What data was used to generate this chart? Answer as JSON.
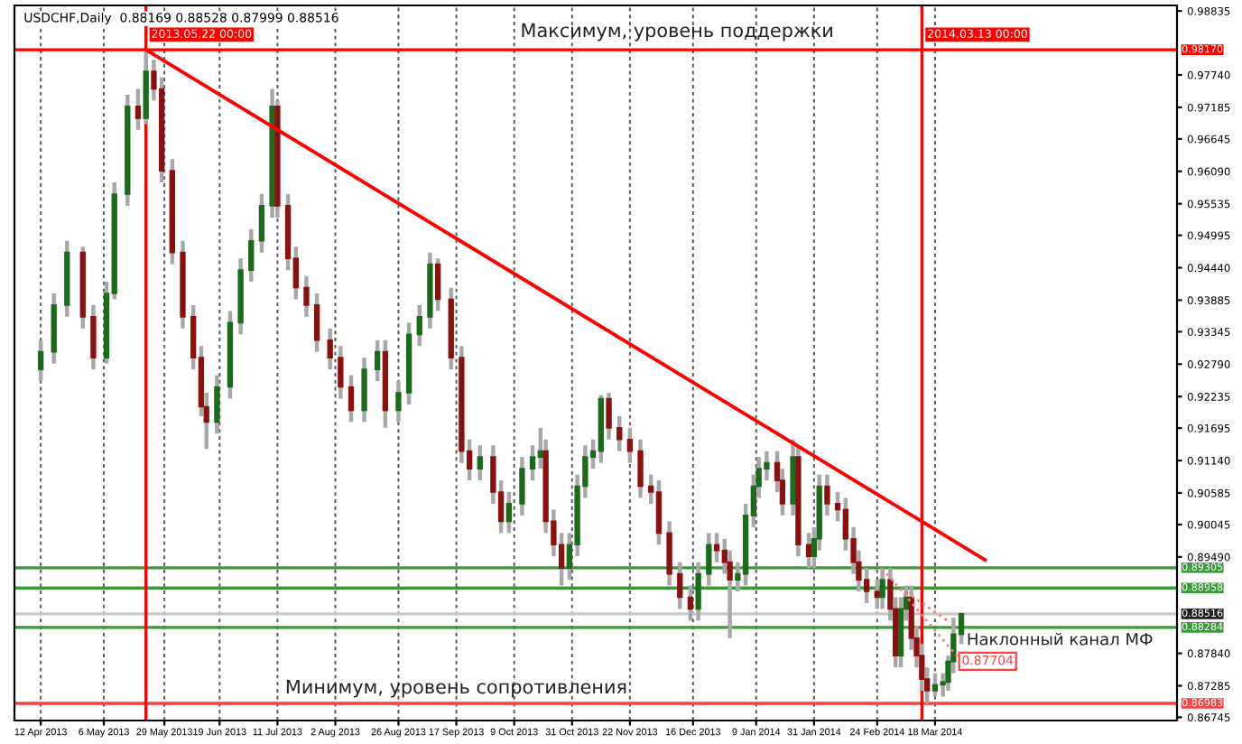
{
  "chart_data": {
    "type": "candlestick",
    "title": "USDCHF,Daily  0.88169 0.88528 0.87999 0.88516",
    "x": [
      "2013-04-12",
      "2013-04-17",
      "2013-04-22",
      "2013-04-28",
      "2013-05-02",
      "2013-05-07",
      "2013-05-10",
      "2013-05-15",
      "2013-05-19",
      "2013-05-22",
      "2013-05-25",
      "2013-05-28",
      "2013-06-01",
      "2013-06-05",
      "2013-06-09",
      "2013-06-12",
      "2013-06-14",
      "2013-06-18",
      "2013-06-23",
      "2013-06-27",
      "2013-07-01",
      "2013-07-05",
      "2013-07-09",
      "2013-07-11",
      "2013-07-15",
      "2013-07-18",
      "2013-07-22",
      "2013-07-26",
      "2013-07-31",
      "2013-08-04",
      "2013-08-08",
      "2013-08-13",
      "2013-08-18",
      "2013-08-21",
      "2013-08-26",
      "2013-08-30",
      "2013-09-03",
      "2013-09-07",
      "2013-09-10",
      "2013-09-15",
      "2013-09-19",
      "2013-09-22",
      "2013-09-26",
      "2013-10-01",
      "2013-10-04",
      "2013-10-07",
      "2013-10-12",
      "2013-10-16",
      "2013-10-19",
      "2013-10-21",
      "2013-10-24",
      "2013-10-27",
      "2013-10-30",
      "2013-11-02",
      "2013-11-05",
      "2013-11-08",
      "2013-11-11",
      "2013-11-14",
      "2013-11-18",
      "2013-11-22",
      "2013-11-26",
      "2013-11-30",
      "2013-12-03",
      "2013-12-07",
      "2013-12-11",
      "2013-12-15",
      "2013-12-18",
      "2013-12-22",
      "2013-12-25",
      "2013-12-28",
      "2013-12-30",
      "2014-01-02",
      "2014-01-05",
      "2014-01-08",
      "2014-01-10",
      "2014-01-13",
      "2014-01-17",
      "2014-01-19",
      "2014-01-23",
      "2014-01-25",
      "2014-01-29",
      "2014-01-31",
      "2014-02-02",
      "2014-02-05",
      "2014-02-09",
      "2014-02-12",
      "2014-02-15",
      "2014-02-17",
      "2014-02-20",
      "2014-02-24",
      "2014-02-26",
      "2014-03-01",
      "2014-03-03",
      "2014-03-05",
      "2014-03-07",
      "2014-03-09",
      "2014-03-11",
      "2014-03-13",
      "2014-03-15",
      "2014-03-18",
      "2014-03-21",
      "2014-03-23",
      "2014-03-25",
      "2014-03-28"
    ],
    "ohlc": [
      [
        0.927,
        0.932,
        0.925,
        0.93
      ],
      [
        0.93,
        0.94,
        0.928,
        0.938
      ],
      [
        0.938,
        0.949,
        0.936,
        0.947
      ],
      [
        0.947,
        0.948,
        0.934,
        0.936
      ],
      [
        0.936,
        0.938,
        0.927,
        0.929
      ],
      [
        0.929,
        0.942,
        0.928,
        0.94
      ],
      [
        0.94,
        0.959,
        0.939,
        0.957
      ],
      [
        0.957,
        0.974,
        0.955,
        0.972
      ],
      [
        0.972,
        0.975,
        0.968,
        0.97
      ],
      [
        0.97,
        0.9817,
        0.969,
        0.978
      ],
      [
        0.978,
        0.98,
        0.973,
        0.975
      ],
      [
        0.975,
        0.977,
        0.959,
        0.961
      ],
      [
        0.961,
        0.963,
        0.945,
        0.947
      ],
      [
        0.947,
        0.949,
        0.934,
        0.936
      ],
      [
        0.936,
        0.938,
        0.927,
        0.929
      ],
      [
        0.929,
        0.931,
        0.919,
        0.9206
      ],
      [
        0.9206,
        0.923,
        0.9134,
        0.918
      ],
      [
        0.918,
        0.926,
        0.916,
        0.924
      ],
      [
        0.924,
        0.937,
        0.922,
        0.935
      ],
      [
        0.935,
        0.946,
        0.933,
        0.944
      ],
      [
        0.944,
        0.951,
        0.942,
        0.949
      ],
      [
        0.949,
        0.957,
        0.947,
        0.955
      ],
      [
        0.955,
        0.975,
        0.953,
        0.972
      ],
      [
        0.972,
        0.973,
        0.953,
        0.955
      ],
      [
        0.955,
        0.957,
        0.944,
        0.946
      ],
      [
        0.946,
        0.948,
        0.939,
        0.941
      ],
      [
        0.941,
        0.943,
        0.936,
        0.938
      ],
      [
        0.938,
        0.94,
        0.93,
        0.932
      ],
      [
        0.932,
        0.934,
        0.927,
        0.929
      ],
      [
        0.929,
        0.931,
        0.922,
        0.924
      ],
      [
        0.924,
        0.926,
        0.918,
        0.92
      ],
      [
        0.92,
        0.929,
        0.918,
        0.927
      ],
      [
        0.927,
        0.932,
        0.925,
        0.93
      ],
      [
        0.93,
        0.932,
        0.917,
        0.92
      ],
      [
        0.92,
        0.925,
        0.918,
        0.923
      ],
      [
        0.923,
        0.935,
        0.921,
        0.933
      ],
      [
        0.933,
        0.938,
        0.931,
        0.936
      ],
      [
        0.936,
        0.947,
        0.934,
        0.945
      ],
      [
        0.945,
        0.946,
        0.937,
        0.939
      ],
      [
        0.939,
        0.941,
        0.927,
        0.929
      ],
      [
        0.929,
        0.931,
        0.911,
        0.913
      ],
      [
        0.913,
        0.915,
        0.908,
        0.91
      ],
      [
        0.91,
        0.914,
        0.908,
        0.912
      ],
      [
        0.912,
        0.914,
        0.904,
        0.906
      ],
      [
        0.906,
        0.908,
        0.899,
        0.901
      ],
      [
        0.901,
        0.906,
        0.899,
        0.904
      ],
      [
        0.904,
        0.912,
        0.902,
        0.91
      ],
      [
        0.91,
        0.914,
        0.908,
        0.912
      ],
      [
        0.912,
        0.917,
        0.91,
        0.913
      ],
      [
        0.913,
        0.915,
        0.899,
        0.901
      ],
      [
        0.901,
        0.903,
        0.895,
        0.897
      ],
      [
        0.897,
        0.899,
        0.89,
        0.893
      ],
      [
        0.893,
        0.899,
        0.891,
        0.897
      ],
      [
        0.897,
        0.909,
        0.895,
        0.907
      ],
      [
        0.907,
        0.914,
        0.905,
        0.912
      ],
      [
        0.912,
        0.915,
        0.91,
        0.913
      ],
      [
        0.913,
        0.9226,
        0.911,
        0.922
      ],
      [
        0.922,
        0.923,
        0.915,
        0.917
      ],
      [
        0.917,
        0.919,
        0.913,
        0.915
      ],
      [
        0.915,
        0.917,
        0.911,
        0.913
      ],
      [
        0.913,
        0.915,
        0.905,
        0.907
      ],
      [
        0.907,
        0.909,
        0.904,
        0.906
      ],
      [
        0.906,
        0.908,
        0.897,
        0.899
      ],
      [
        0.899,
        0.901,
        0.89,
        0.892
      ],
      [
        0.892,
        0.894,
        0.886,
        0.888
      ],
      [
        0.888,
        0.89,
        0.884,
        0.886
      ],
      [
        0.886,
        0.894,
        0.884,
        0.892
      ],
      [
        0.892,
        0.899,
        0.89,
        0.897
      ],
      [
        0.897,
        0.899,
        0.894,
        0.896
      ],
      [
        0.896,
        0.898,
        0.892,
        0.894
      ],
      [
        0.894,
        0.896,
        0.881,
        0.891
      ],
      [
        0.891,
        0.894,
        0.889,
        0.892
      ],
      [
        0.892,
        0.904,
        0.89,
        0.902
      ],
      [
        0.902,
        0.909,
        0.9,
        0.907
      ],
      [
        0.907,
        0.912,
        0.905,
        0.91
      ],
      [
        0.91,
        0.913,
        0.908,
        0.911
      ],
      [
        0.911,
        0.913,
        0.906,
        0.908
      ],
      [
        0.908,
        0.91,
        0.902,
        0.904
      ],
      [
        0.904,
        0.915,
        0.902,
        0.912
      ],
      [
        0.912,
        0.914,
        0.895,
        0.897
      ],
      [
        0.897,
        0.899,
        0.893,
        0.895
      ],
      [
        0.895,
        0.9,
        0.893,
        0.898
      ],
      [
        0.898,
        0.909,
        0.896,
        0.907
      ],
      [
        0.907,
        0.909,
        0.902,
        0.904
      ],
      [
        0.904,
        0.906,
        0.901,
        0.903
      ],
      [
        0.903,
        0.905,
        0.896,
        0.898
      ],
      [
        0.898,
        0.9,
        0.892,
        0.894
      ],
      [
        0.894,
        0.896,
        0.889,
        0.891
      ],
      [
        0.891,
        0.893,
        0.887,
        0.889
      ],
      [
        0.889,
        0.891,
        0.886,
        0.888
      ],
      [
        0.888,
        0.893,
        0.886,
        0.891
      ],
      [
        0.891,
        0.893,
        0.884,
        0.886
      ],
      [
        0.886,
        0.888,
        0.876,
        0.878
      ],
      [
        0.878,
        0.888,
        0.876,
        0.886
      ],
      [
        0.886,
        0.89,
        0.884,
        0.888
      ],
      [
        0.888,
        0.89,
        0.879,
        0.881
      ],
      [
        0.881,
        0.883,
        0.876,
        0.878
      ],
      [
        0.878,
        0.88,
        0.872,
        0.874
      ],
      [
        0.874,
        0.876,
        0.86983,
        0.872
      ],
      [
        0.872,
        0.875,
        0.871,
        0.873
      ],
      [
        0.873,
        0.875,
        0.871,
        0.8735
      ],
      [
        0.8735,
        0.878,
        0.872,
        0.877
      ],
      [
        0.877,
        0.8845,
        0.875,
        0.88169
      ],
      [
        0.88169,
        0.88528,
        0.87999,
        0.88516
      ]
    ],
    "colors": [
      "#1a6b1a",
      "#1a6b1a",
      "#1a6b1a",
      "#8b1010",
      "#8b1010",
      "#1a6b1a",
      "#1a6b1a",
      "#1a6b1a",
      "#8b1010",
      "#1a6b1a",
      "#8b1010",
      "#8b1010",
      "#8b1010",
      "#8b1010",
      "#8b1010",
      "#8b1010",
      "#8b1010",
      "#1a6b1a",
      "#1a6b1a",
      "#1a6b1a",
      "#1a6b1a",
      "#1a6b1a",
      "#1a6b1a",
      "#8b1010",
      "#8b1010",
      "#8b1010",
      "#8b1010",
      "#8b1010",
      "#8b1010",
      "#8b1010",
      "#8b1010",
      "#1a6b1a",
      "#1a6b1a",
      "#8b1010",
      "#1a6b1a",
      "#1a6b1a",
      "#1a6b1a",
      "#1a6b1a",
      "#8b1010",
      "#8b1010",
      "#8b1010",
      "#8b1010",
      "#1a6b1a",
      "#8b1010",
      "#8b1010",
      "#1a6b1a",
      "#1a6b1a",
      "#1a6b1a",
      "#1a6b1a",
      "#8b1010",
      "#8b1010",
      "#8b1010",
      "#1a6b1a",
      "#1a6b1a",
      "#1a6b1a",
      "#1a6b1a",
      "#1a6b1a",
      "#8b1010",
      "#8b1010",
      "#8b1010",
      "#8b1010",
      "#8b1010",
      "#8b1010",
      "#8b1010",
      "#8b1010",
      "#8b1010",
      "#1a6b1a",
      "#1a6b1a",
      "#8b1010",
      "#8b1010",
      "#8b1010",
      "#1a6b1a",
      "#1a6b1a",
      "#1a6b1a",
      "#1a6b1a",
      "#1a6b1a",
      "#8b1010",
      "#8b1010",
      "#1a6b1a",
      "#8b1010",
      "#8b1010",
      "#1a6b1a",
      "#1a6b1a",
      "#8b1010",
      "#8b1010",
      "#8b1010",
      "#8b1010",
      "#8b1010",
      "#8b1010",
      "#8b1010",
      "#1a6b1a",
      "#8b1010",
      "#8b1010",
      "#1a6b1a",
      "#1a6b1a",
      "#8b1010",
      "#8b1010",
      "#8b1010",
      "#8b1010",
      "#1a6b1a",
      "#1a6b1a",
      "#1a6b1a",
      "#1a6b1a",
      "#1a6b1a"
    ],
    "series": [
      {
        "type": "line",
        "color": "#ff0000",
        "x": [
          "2013-05-22",
          "2014-04-06"
        ],
        "values": [
          0.9817,
          0.8944
        ]
      },
      {
        "type": "line",
        "color": "#f08080",
        "line_style": "dotted",
        "x": [
          "2014-02-26",
          "2014-03-28"
        ],
        "values": [
          0.8929,
          0.87704
        ]
      },
      {
        "type": "line",
        "color": "#f08080",
        "line_style": "dotted",
        "x": [
          "2014-03-05",
          "2014-03-23"
        ],
        "values": [
          0.8895,
          0.8839
        ]
      }
    ],
    "xlim": [
      "2013-04-02",
      "2014-06-18"
    ],
    "ylim": [
      0.8669,
      0.9893
    ],
    "xticks": [
      {
        "value": "2013-04-12",
        "label": "12 Apr 2013"
      },
      {
        "value": "2013-05-06",
        "label": "6 May 2013"
      },
      {
        "value": "2013-05-29",
        "label": "29 May 2013"
      },
      {
        "value": "2013-06-19",
        "label": "19 Jun 2013"
      },
      {
        "value": "2013-07-11",
        "label": "11 Jul 2013"
      },
      {
        "value": "2013-08-02",
        "label": "2 Aug 2013"
      },
      {
        "value": "2013-08-26",
        "label": "26 Aug 2013"
      },
      {
        "value": "2013-09-17",
        "label": "17 Sep 2013"
      },
      {
        "value": "2013-10-09",
        "label": "9 Oct 2013"
      },
      {
        "value": "2013-10-31",
        "label": "31 Oct 2013"
      },
      {
        "value": "2013-11-22",
        "label": "22 Nov 2013"
      },
      {
        "value": "2013-12-16",
        "label": "16 Dec 2013"
      },
      {
        "value": "2014-01-09",
        "label": "9 Jan 2014"
      },
      {
        "value": "2014-01-31",
        "label": "31 Jan 2014"
      },
      {
        "value": "2014-02-24",
        "label": "24 Feb 2014"
      },
      {
        "value": "2014-03-18",
        "label": "18 Mar 2014"
      }
    ],
    "yticks": [
      0.98835,
      {
        "value": 0.9774,
        "label": "0.97740"
      },
      0.97185,
      0.96645,
      {
        "value": 0.9609,
        "label": "0.96090"
      },
      0.95535,
      0.94995,
      {
        "value": 0.9444,
        "label": "0.94440"
      },
      0.93885,
      0.93345,
      {
        "value": 0.9279,
        "label": "0.92790"
      },
      0.92235,
      0.91695,
      {
        "value": 0.9114,
        "label": "0.91140"
      },
      0.90585,
      0.90045,
      {
        "value": 0.8949,
        "label": "0.89490"
      },
      {
        "value": 0.8784,
        "label": "0.87840"
      },
      0.87285,
      0.86745
    ],
    "grid": "x",
    "ref_lines": [
      {
        "axis": "y",
        "value": 0.9817,
        "label": "0.98170",
        "color": "#ff0000"
      },
      {
        "axis": "y",
        "value": 0.86983,
        "label": "0.86983",
        "color": "#ff4040"
      },
      {
        "axis": "y",
        "value": 0.89305,
        "label": "0.89305",
        "color": "#3a9a3a"
      },
      {
        "axis": "y",
        "value": 0.88958,
        "label": "0.88958",
        "color": "#3a9a3a"
      },
      {
        "axis": "y",
        "value": 0.88516,
        "label": "0.88516",
        "color": "#c8c8c8"
      },
      {
        "axis": "y",
        "value": 0.88284,
        "label": "0.88284",
        "color": "#3a9a3a"
      },
      {
        "axis": "x",
        "value": "2013-05-22",
        "label": "2013.05.22 00:00",
        "color": "#ff0000"
      },
      {
        "axis": "x",
        "value": "2014-03-13",
        "label": "2014.03.13 00:00",
        "color": "#ff0000"
      }
    ],
    "annotations": [
      "Максимум, уровень поддержки",
      "Минимум, уровень сопротивления",
      {
        "text": "Наклонный канал МФ",
        "x": "2014-03-30",
        "y": 0.8806
      },
      {
        "text": "0.87704",
        "x": "2014-04-07",
        "y": 0.87704
      }
    ]
  }
}
